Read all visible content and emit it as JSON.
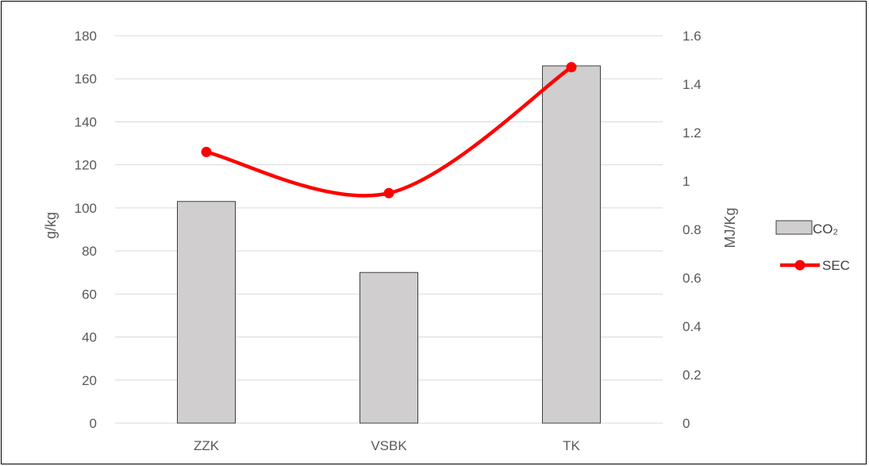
{
  "chart_data": {
    "type": "bar",
    "categories": [
      "ZZK",
      "VSBK",
      "TK"
    ],
    "series": [
      {
        "name": "CO₂",
        "kind": "bar",
        "axis": "left",
        "values": [
          103,
          70,
          166
        ],
        "color": "#d0cece",
        "stroke": "#404040"
      },
      {
        "name": "SEC",
        "kind": "line",
        "axis": "right",
        "values": [
          1.12,
          0.95,
          1.47
        ],
        "color": "#ff0000"
      }
    ],
    "ylabel_left": "g/kg",
    "ylabel_right": "MJ/Kg",
    "ylim_left": [
      0,
      180
    ],
    "ylim_right": [
      0,
      1.6
    ],
    "yticks_left": [
      "0",
      "20",
      "40",
      "60",
      "80",
      "100",
      "120",
      "140",
      "160",
      "180"
    ],
    "yticks_right": [
      "0",
      "0.2",
      "0.4",
      "0.6",
      "0.8",
      "1",
      "1.2",
      "1.4",
      "1.6"
    ],
    "grid": true,
    "grid_color": "#d9d9d9",
    "legend_position": "right",
    "line_smoothed": true
  }
}
